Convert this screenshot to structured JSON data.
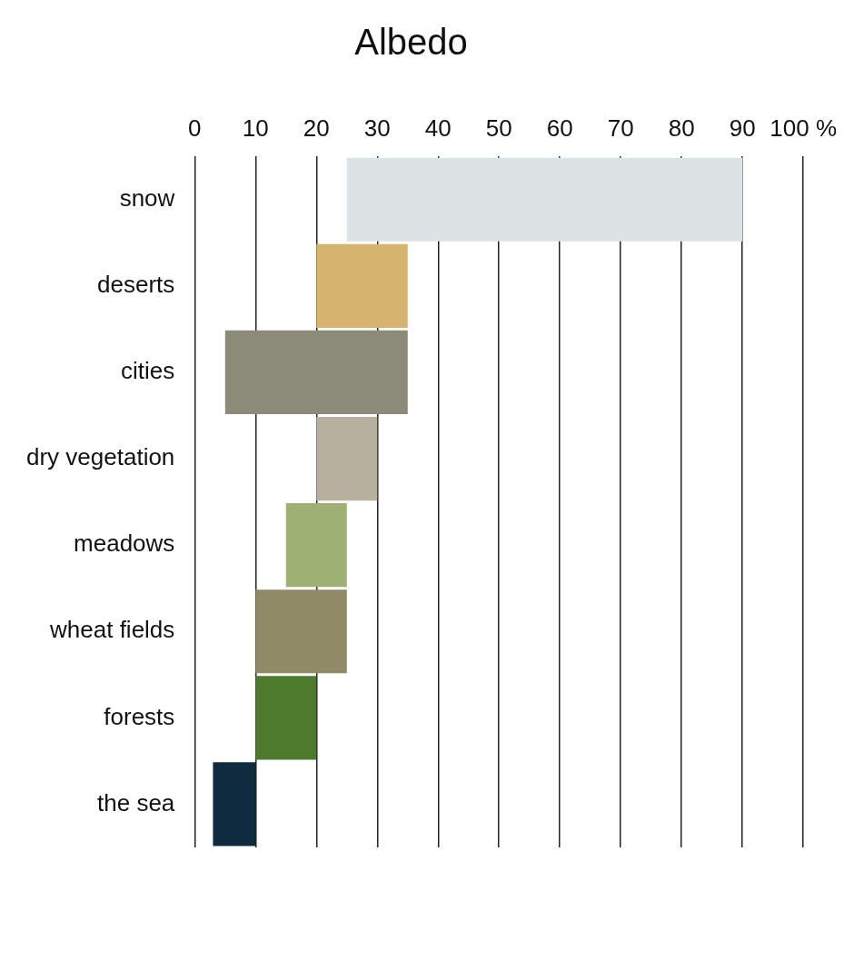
{
  "chart_data": {
    "type": "bar",
    "title": "Albedo",
    "orientation": "horizontal",
    "categories": [
      "snow",
      "deserts",
      "cities",
      "dry vegetation",
      "meadows",
      "wheat fields",
      "forests",
      "the sea"
    ],
    "values": [
      [
        25,
        90
      ],
      [
        20,
        35
      ],
      [
        5,
        35
      ],
      [
        20,
        30
      ],
      [
        15,
        25
      ],
      [
        10,
        25
      ],
      [
        10,
        20
      ],
      [
        3,
        10
      ]
    ],
    "colors": [
      "#dde2e5",
      "#d6b36e",
      "#8c8a78",
      "#b8b09e",
      "#9fb074",
      "#908a66",
      "#4e7a2e",
      "#0f2b40"
    ],
    "xlim": [
      0,
      100
    ],
    "xticks": [
      0,
      10,
      20,
      30,
      40,
      50,
      60,
      70,
      80,
      90,
      {
        "value": 100,
        "label": "100 %"
      }
    ],
    "grid": true,
    "legend": false,
    "tick_labels": true
  }
}
